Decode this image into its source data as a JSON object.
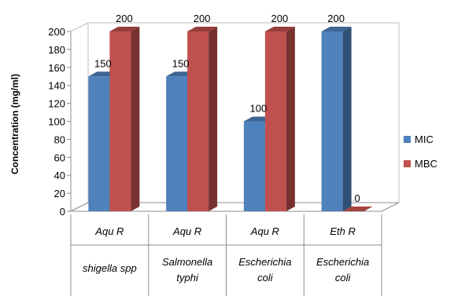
{
  "chart_data": {
    "type": "bar",
    "title": "",
    "ylabel": "Concentration (mg/ml)",
    "xlabel": "",
    "ylim": [
      0,
      200
    ],
    "ytick_step": 20,
    "grid": false,
    "style": "3d-clustered-column",
    "legend_position": "right",
    "categories": [
      {
        "line1": "Aqu R",
        "line2a": "shigella spp",
        "line2b": ""
      },
      {
        "line1": "Aqu R",
        "line2a": "Salmonella",
        "line2b": "typhi"
      },
      {
        "line1": "Aqu R",
        "line2a": "Escherichia",
        "line2b": "coli"
      },
      {
        "line1": "Eth R",
        "line2a": "Escherichia",
        "line2b": "coli"
      }
    ],
    "series": [
      {
        "name": "MIC",
        "values": [
          150,
          150,
          100,
          200
        ],
        "labels": [
          "150",
          "150",
          "100",
          "200"
        ],
        "color": "#4F81BD"
      },
      {
        "name": "MBC",
        "values": [
          200,
          200,
          200,
          0
        ],
        "labels": [
          "200",
          "200",
          "200",
          "0"
        ],
        "color": "#C0504D"
      }
    ]
  }
}
